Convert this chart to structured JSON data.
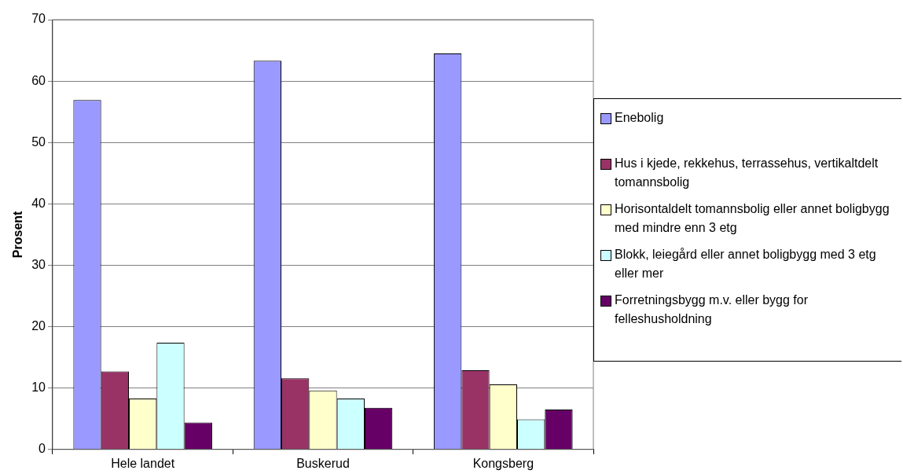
{
  "chart_data": {
    "type": "bar",
    "ylabel": "Prosent",
    "categories": [
      "Hele landet",
      "Buskerud",
      "Kongsberg"
    ],
    "series": [
      {
        "name": "Enebolig",
        "color": "#9999ff",
        "values": [
          56.9,
          63.3,
          64.5
        ]
      },
      {
        "name": "Hus i kjede, rekkehus, terrassehus, vertikaltdelt tomannsbolig",
        "color": "#993366",
        "values": [
          12.7,
          11.6,
          12.9
        ]
      },
      {
        "name": "Horisontaldelt tomannsbolig eller annet boligbygg med mindre enn 3 etg",
        "color": "#ffffcc",
        "values": [
          8.3,
          9.6,
          10.6
        ]
      },
      {
        "name": "Blokk, leiegård eller annet boligbygg med 3 etg eller mer",
        "color": "#ccffff",
        "values": [
          17.4,
          8.3,
          4.9
        ]
      },
      {
        "name": "Forretningsbygg m.v. eller bygg for felleshusholdning",
        "color": "#660066",
        "values": [
          4.4,
          6.8,
          6.5
        ]
      }
    ],
    "ylim": [
      0,
      70
    ],
    "yticks": [
      0,
      10,
      20,
      30,
      40,
      50,
      60,
      70
    ],
    "grid": "y",
    "legend": "right"
  }
}
